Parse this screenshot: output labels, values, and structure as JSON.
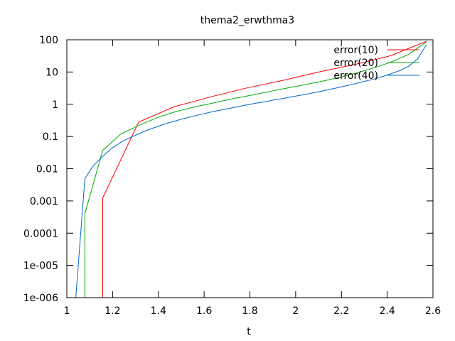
{
  "chart_data": {
    "type": "line",
    "title": "thema2_erwthma3",
    "xlabel": "t",
    "ylabel": "",
    "xlim": [
      1,
      2.6
    ],
    "ylim": [
      1e-06,
      100
    ],
    "yscale": "log",
    "grid": false,
    "legend_position": "top-right",
    "x_ticks": [
      {
        "value": 1,
        "label": "1"
      },
      {
        "value": 1.2,
        "label": "1.2"
      },
      {
        "value": 1.4,
        "label": "1.4"
      },
      {
        "value": 1.6,
        "label": "1.6"
      },
      {
        "value": 1.8,
        "label": "1.8"
      },
      {
        "value": 2,
        "label": "2"
      },
      {
        "value": 2.2,
        "label": "2.2"
      },
      {
        "value": 2.4,
        "label": "2.4"
      },
      {
        "value": 2.6,
        "label": "2.6"
      }
    ],
    "y_ticks": [
      {
        "value": 1e-06,
        "label": "1e-006"
      },
      {
        "value": 1e-05,
        "label": "1e-005"
      },
      {
        "value": 0.0001,
        "label": "0.0001"
      },
      {
        "value": 0.001,
        "label": "0.001"
      },
      {
        "value": 0.01,
        "label": "0.01"
      },
      {
        "value": 0.1,
        "label": "0.1"
      },
      {
        "value": 1,
        "label": "1"
      },
      {
        "value": 10,
        "label": "10"
      },
      {
        "value": 100,
        "label": "100"
      }
    ],
    "series": [
      {
        "name": "error(10)",
        "color": "#ff0000",
        "x": [
          1.157,
          1.157,
          1.314,
          1.471,
          1.629,
          1.786,
          1.943,
          2.1,
          2.257,
          2.414,
          2.571
        ],
        "y": [
          1e-06,
          0.00125,
          0.28,
          0.85,
          1.7,
          3.2,
          5.5,
          10,
          17,
          32,
          90
        ]
      },
      {
        "name": "error(20)",
        "color": "#00aa00",
        "x": [
          1.079,
          1.079,
          1.157,
          1.236,
          1.314,
          1.393,
          1.471,
          1.55,
          1.629,
          1.707,
          1.786,
          1.864,
          1.943,
          2.021,
          2.1,
          2.179,
          2.257,
          2.336,
          2.414,
          2.493,
          2.571
        ],
        "y": [
          1e-06,
          0.0004,
          0.037,
          0.12,
          0.22,
          0.38,
          0.58,
          0.8,
          1.05,
          1.4,
          1.8,
          2.3,
          3.0,
          3.8,
          4.9,
          6.5,
          9,
          13,
          20,
          35,
          85
        ]
      },
      {
        "name": "error(40)",
        "color": "#0066cc",
        "x": [
          1.039,
          1.079,
          1.118,
          1.157,
          1.196,
          1.236,
          1.275,
          1.314,
          1.354,
          1.393,
          1.432,
          1.471,
          1.511,
          1.55,
          1.589,
          1.629,
          1.668,
          1.707,
          1.746,
          1.786,
          1.825,
          1.864,
          1.904,
          1.943,
          1.982,
          2.021,
          2.061,
          2.1,
          2.139,
          2.179,
          2.218,
          2.257,
          2.296,
          2.336,
          2.375,
          2.414,
          2.454,
          2.493,
          2.532,
          2.571
        ],
        "y": [
          1e-06,
          0.005,
          0.013,
          0.024,
          0.043,
          0.066,
          0.092,
          0.12,
          0.16,
          0.2,
          0.25,
          0.3,
          0.36,
          0.42,
          0.49,
          0.57,
          0.65,
          0.74,
          0.84,
          0.95,
          1.07,
          1.2,
          1.35,
          1.5,
          1.7,
          1.9,
          2.15,
          2.45,
          2.8,
          3.2,
          3.7,
          4.3,
          5.0,
          5.9,
          7.1,
          8.7,
          11,
          15,
          25,
          70
        ]
      }
    ]
  }
}
